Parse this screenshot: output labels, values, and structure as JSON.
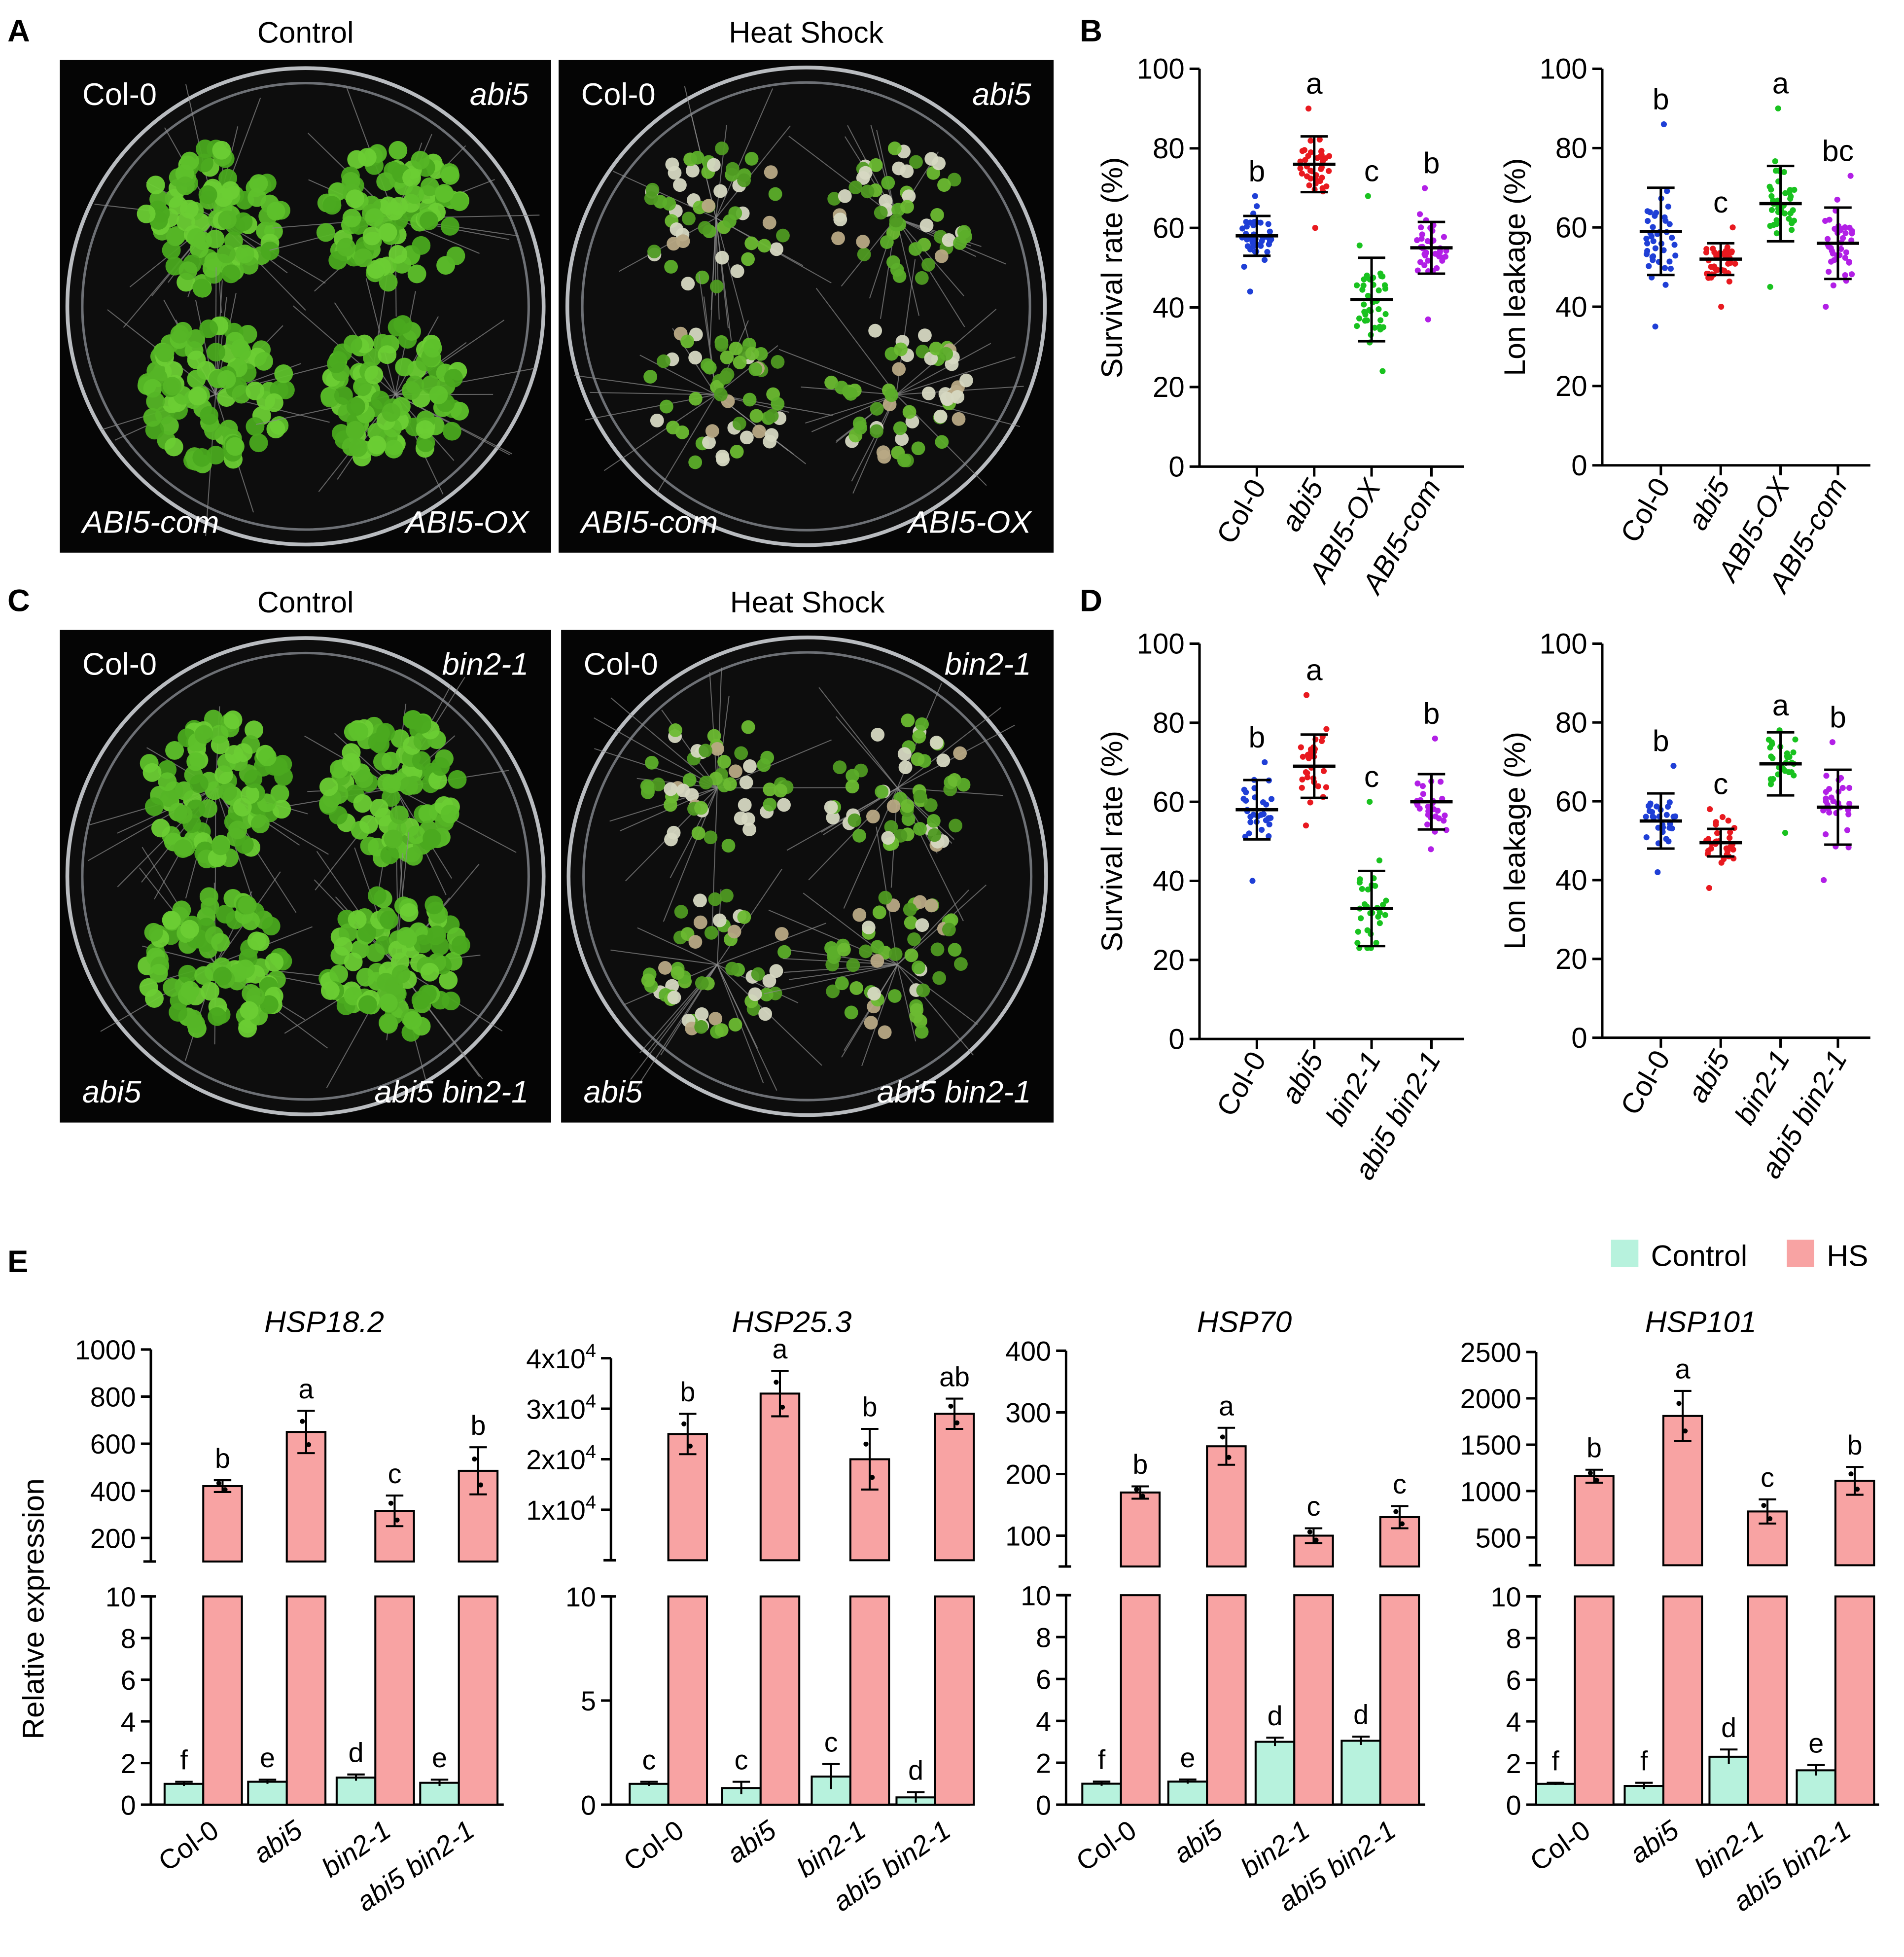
{
  "panel_letters": {
    "a": "A",
    "b": "B",
    "c": "C",
    "d": "D",
    "e": "E"
  },
  "panel_a": {
    "plates": [
      {
        "title": "Control",
        "quadrants": [
          "Col-0",
          "abi5",
          "ABI5-com",
          "ABI5-OX"
        ],
        "condition": "healthy"
      },
      {
        "title": "Heat Shock",
        "quadrants": [
          "Col-0",
          "abi5",
          "ABI5-com",
          "ABI5-OX"
        ],
        "condition": "heat"
      }
    ]
  },
  "panel_c": {
    "plates": [
      {
        "title": "Control",
        "quadrants": [
          "Col-0",
          "bin2-1",
          "abi5",
          "abi5 bin2-1"
        ],
        "condition": "healthy"
      },
      {
        "title": "Heat Shock",
        "quadrants": [
          "Col-0",
          "bin2-1",
          "abi5",
          "abi5 bin2-1"
        ],
        "condition": "heat"
      }
    ]
  },
  "colors": {
    "blue": "#1f3fd6",
    "red": "#e8191f",
    "green": "#19c21f",
    "purple": "#b21fe6",
    "control_bar": "#b7f2dd",
    "hs_bar": "#f8a3a3",
    "plate_bg": "#050505",
    "leaf": "#5fbf2a"
  },
  "chart_data": [
    {
      "id": "B1",
      "type": "scatter",
      "ylabel": "Survival rate (%)",
      "ylim": [
        0,
        100
      ],
      "yticks": [
        0,
        20,
        40,
        60,
        80,
        100
      ],
      "categories": [
        "Col-0",
        "abi5",
        "ABI5-OX",
        "ABI5-com"
      ],
      "series": [
        {
          "mean": 58,
          "sd": 5,
          "letter": "b",
          "color": "blue",
          "n": 40,
          "min": 44,
          "max": 68
        },
        {
          "mean": 76,
          "sd": 7,
          "letter": "a",
          "color": "red",
          "n": 40,
          "min": 60,
          "max": 90
        },
        {
          "mean": 42,
          "sd": 10.5,
          "letter": "c",
          "color": "green",
          "n": 40,
          "min": 24,
          "max": 68
        },
        {
          "mean": 55,
          "sd": 6.5,
          "letter": "b",
          "color": "purple",
          "n": 40,
          "min": 37,
          "max": 70
        }
      ]
    },
    {
      "id": "B2",
      "type": "scatter",
      "ylabel": "Lon leakage (%)",
      "ylim": [
        0,
        100
      ],
      "yticks": [
        0,
        20,
        40,
        60,
        80,
        100
      ],
      "categories": [
        "Col-0",
        "abi5",
        "ABI5-OX",
        "ABI5-com"
      ],
      "series": [
        {
          "mean": 59,
          "sd": 11,
          "letter": "b",
          "color": "blue",
          "n": 40,
          "min": 35,
          "max": 86
        },
        {
          "mean": 52,
          "sd": 4,
          "letter": "c",
          "color": "red",
          "n": 40,
          "min": 40,
          "max": 60
        },
        {
          "mean": 66,
          "sd": 9.5,
          "letter": "a",
          "color": "green",
          "n": 40,
          "min": 45,
          "max": 90
        },
        {
          "mean": 56,
          "sd": 9,
          "letter": "bc",
          "color": "purple",
          "n": 40,
          "min": 40,
          "max": 73
        }
      ]
    },
    {
      "id": "D1",
      "type": "scatter",
      "ylabel": "Survival rate (%)",
      "ylim": [
        0,
        100
      ],
      "yticks": [
        0,
        20,
        40,
        60,
        80,
        100
      ],
      "categories": [
        "Col-0",
        "abi5",
        "bin2-1",
        "abi5 bin2-1"
      ],
      "series": [
        {
          "mean": 58,
          "sd": 7.5,
          "letter": "b",
          "color": "blue",
          "n": 30,
          "min": 40,
          "max": 70
        },
        {
          "mean": 69,
          "sd": 8,
          "letter": "a",
          "color": "red",
          "n": 30,
          "min": 54,
          "max": 87
        },
        {
          "mean": 33,
          "sd": 9.5,
          "letter": "c",
          "color": "green",
          "n": 30,
          "min": 23,
          "max": 60
        },
        {
          "mean": 60,
          "sd": 7,
          "letter": "b",
          "color": "purple",
          "n": 30,
          "min": 48,
          "max": 76
        }
      ]
    },
    {
      "id": "D2",
      "type": "scatter",
      "ylabel": "Lon leakage (%)",
      "ylim": [
        0,
        100
      ],
      "yticks": [
        0,
        20,
        40,
        60,
        80,
        100
      ],
      "categories": [
        "Col-0",
        "abi5",
        "bin2-1",
        "abi5 bin2-1"
      ],
      "series": [
        {
          "mean": 55,
          "sd": 7,
          "letter": "b",
          "color": "blue",
          "n": 30,
          "min": 42,
          "max": 69
        },
        {
          "mean": 49.5,
          "sd": 3.5,
          "letter": "c",
          "color": "red",
          "n": 30,
          "min": 38,
          "max": 58
        },
        {
          "mean": 69.5,
          "sd": 8,
          "letter": "a",
          "color": "green",
          "n": 30,
          "min": 52,
          "max": 78
        },
        {
          "mean": 58.5,
          "sd": 9.5,
          "letter": "b",
          "color": "purple",
          "n": 30,
          "min": 40,
          "max": 75
        }
      ]
    },
    {
      "id": "E1",
      "type": "bar",
      "title": "HSP18.2",
      "ylabel": "Relative expression",
      "categories": [
        "Col-0",
        "abi5",
        "bin2-1",
        "abi5 bin2-1"
      ],
      "series": [
        {
          "name": "Control",
          "values": [
            1.0,
            1.1,
            1.3,
            1.05
          ],
          "errors": [
            0.1,
            0.1,
            0.15,
            0.15
          ],
          "letters": [
            "f",
            "e",
            "d",
            "e"
          ]
        },
        {
          "name": "HS",
          "values": [
            420,
            650,
            315,
            485
          ],
          "errors": [
            25,
            90,
            65,
            100
          ],
          "letters": [
            "b",
            "a",
            "c",
            "b"
          ]
        }
      ],
      "upper": {
        "ylim": [
          100,
          1000
        ],
        "ticks": [
          200,
          400,
          600,
          800,
          1000
        ],
        "tick_labels": [
          "200",
          "400",
          "600",
          "800",
          "1000"
        ]
      },
      "lower": {
        "ylim": [
          0,
          10
        ],
        "ticks": [
          0,
          2,
          4,
          6,
          8,
          10
        ],
        "tick_labels": [
          "0",
          "2",
          "4",
          "6",
          "8",
          "10"
        ]
      }
    },
    {
      "id": "E2",
      "type": "bar",
      "title": "HSP25.3",
      "categories": [
        "Col-0",
        "abi5",
        "bin2-1",
        "abi5 bin2-1"
      ],
      "series": [
        {
          "name": "Control",
          "values": [
            1.0,
            0.8,
            1.35,
            0.35
          ],
          "errors": [
            0.1,
            0.3,
            0.6,
            0.25
          ],
          "letters": [
            "c",
            "c",
            "c",
            "d"
          ]
        },
        {
          "name": "HS",
          "values": [
            25000,
            33000,
            20000,
            29000
          ],
          "errors": [
            4000,
            4500,
            6000,
            3000
          ],
          "letters": [
            "b",
            "a",
            "b",
            "ab"
          ]
        }
      ],
      "upper": {
        "ylim": [
          0,
          40000
        ],
        "ticks": [
          10000,
          20000,
          30000,
          40000
        ],
        "tick_labels": [
          "1x10",
          "2x10",
          "3x10",
          "4x10"
        ],
        "tick_exponent": "4"
      },
      "lower": {
        "ylim": [
          0,
          10
        ],
        "ticks": [
          0,
          5,
          10
        ],
        "tick_labels": [
          "0",
          "5",
          "10"
        ]
      }
    },
    {
      "id": "E3",
      "type": "bar",
      "title": "HSP70",
      "categories": [
        "Col-0",
        "abi5",
        "bin2-1",
        "abi5 bin2-1"
      ],
      "series": [
        {
          "name": "Control",
          "values": [
            1.0,
            1.1,
            3.0,
            3.05
          ],
          "errors": [
            0.1,
            0.1,
            0.2,
            0.2
          ],
          "letters": [
            "f",
            "e",
            "d",
            "d"
          ]
        },
        {
          "name": "HS",
          "values": [
            170,
            245,
            100,
            130
          ],
          "errors": [
            10,
            30,
            12,
            18
          ],
          "letters": [
            "b",
            "a",
            "c",
            "c"
          ]
        }
      ],
      "upper": {
        "ylim": [
          50,
          400
        ],
        "ticks": [
          100,
          200,
          300,
          400
        ],
        "tick_labels": [
          "100",
          "200",
          "300",
          "400"
        ]
      },
      "lower": {
        "ylim": [
          0,
          10
        ],
        "ticks": [
          0,
          2,
          4,
          6,
          8,
          10
        ],
        "tick_labels": [
          "0",
          "2",
          "4",
          "6",
          "8",
          "10"
        ]
      }
    },
    {
      "id": "E4",
      "type": "bar",
      "title": "HSP101",
      "categories": [
        "Col-0",
        "abi5",
        "bin2-1",
        "abi5 bin2-1"
      ],
      "series": [
        {
          "name": "Control",
          "values": [
            1.0,
            0.9,
            2.3,
            1.65
          ],
          "errors": [
            0.05,
            0.15,
            0.35,
            0.25
          ],
          "letters": [
            "f",
            "f",
            "d",
            "e"
          ]
        },
        {
          "name": "HS",
          "values": [
            1160,
            1810,
            780,
            1110
          ],
          "errors": [
            70,
            270,
            130,
            150
          ],
          "letters": [
            "b",
            "a",
            "c",
            "b"
          ]
        }
      ],
      "upper": {
        "ylim": [
          200,
          2500
        ],
        "ticks": [
          500,
          1000,
          1500,
          2000,
          2500
        ],
        "tick_labels": [
          "500",
          "1000",
          "1500",
          "2000",
          "2500"
        ]
      },
      "lower": {
        "ylim": [
          0,
          10
        ],
        "ticks": [
          0,
          2,
          4,
          6,
          8,
          10
        ],
        "tick_labels": [
          "0",
          "2",
          "4",
          "6",
          "8",
          "10"
        ]
      }
    }
  ],
  "legend_e": [
    {
      "label": "Control",
      "color": "control_bar"
    },
    {
      "label": "HS",
      "color": "hs_bar"
    }
  ]
}
